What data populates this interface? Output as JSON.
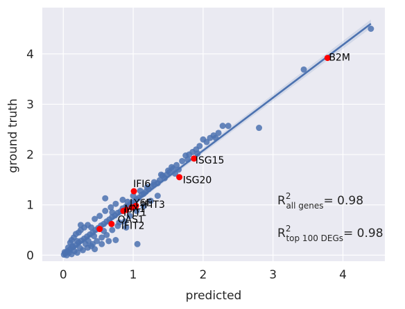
{
  "chart_data": {
    "type": "scatter",
    "title": "",
    "xlabel": "predicted",
    "ylabel": "ground truth",
    "xlim": [
      -0.3,
      4.6
    ],
    "ylim": [
      -0.12,
      4.92
    ],
    "xticks": [
      0,
      1,
      2,
      3,
      4
    ],
    "yticks": [
      0,
      1,
      2,
      3,
      4
    ],
    "grid": true,
    "colors": {
      "background": "#EAEAF2",
      "grid": "#FFFFFF",
      "points": "#4C72B0",
      "highlight": "#FF0000",
      "fit": "#4C72B0"
    },
    "fit_line": {
      "x": [
        0,
        4.4
      ],
      "y": [
        -0.02,
        4.6
      ]
    },
    "highlighted": [
      {
        "label": "B2M",
        "x": 3.78,
        "y": 3.92
      },
      {
        "label": "ISG15",
        "x": 1.87,
        "y": 1.92
      },
      {
        "label": "ISG20",
        "x": 1.66,
        "y": 1.55
      },
      {
        "label": "IFI6",
        "x": 1.01,
        "y": 1.27
      },
      {
        "label": "IFIT3",
        "x": 1.04,
        "y": 0.98
      },
      {
        "label": "LY6E",
        "x": 0.98,
        "y": 0.95
      },
      {
        "label": "MX1",
        "x": 0.9,
        "y": 0.9
      },
      {
        "label": "IFIT1",
        "x": 0.86,
        "y": 0.88
      },
      {
        "label": "OAS1",
        "x": 0.52,
        "y": 0.52
      },
      {
        "label": "IFIT2",
        "x": 0.69,
        "y": 0.62
      }
    ],
    "points": [
      [
        4.4,
        4.5
      ],
      [
        3.44,
        3.69
      ],
      [
        2.8,
        2.53
      ],
      [
        2.36,
        2.57
      ],
      [
        2.28,
        2.57
      ],
      [
        2.22,
        2.43
      ],
      [
        2.15,
        2.38
      ],
      [
        2.1,
        2.33
      ],
      [
        2.05,
        2.25
      ],
      [
        2.0,
        2.3
      ],
      [
        1.95,
        2.17
      ],
      [
        1.9,
        2.1
      ],
      [
        1.85,
        2.05
      ],
      [
        1.8,
        2.0
      ],
      [
        1.75,
        1.98
      ],
      [
        1.7,
        1.87
      ],
      [
        1.62,
        1.79
      ],
      [
        1.57,
        1.72
      ],
      [
        1.52,
        1.65
      ],
      [
        1.48,
        1.6
      ],
      [
        1.45,
        1.53
      ],
      [
        1.42,
        1.58
      ],
      [
        1.38,
        1.49
      ],
      [
        1.35,
        1.43
      ],
      [
        1.3,
        1.4
      ],
      [
        1.26,
        1.37
      ],
      [
        1.22,
        1.31
      ],
      [
        1.18,
        1.26
      ],
      [
        1.15,
        1.22
      ],
      [
        1.12,
        1.2
      ],
      [
        1.08,
        1.14
      ],
      [
        1.05,
        1.11
      ],
      [
        1.02,
        1.07
      ],
      [
        0.98,
        1.04
      ],
      [
        0.95,
        1.0
      ],
      [
        0.9,
        0.97
      ],
      [
        0.85,
        0.93
      ],
      [
        0.82,
        0.87
      ],
      [
        0.78,
        0.84
      ],
      [
        0.74,
        0.79
      ],
      [
        0.7,
        0.76
      ],
      [
        0.66,
        0.71
      ],
      [
        0.62,
        0.67
      ],
      [
        0.58,
        0.62
      ],
      [
        0.54,
        0.59
      ],
      [
        0.5,
        0.54
      ],
      [
        0.46,
        0.5
      ],
      [
        0.42,
        0.45
      ],
      [
        0.38,
        0.41
      ],
      [
        0.34,
        0.37
      ],
      [
        0.3,
        0.33
      ],
      [
        0.26,
        0.29
      ],
      [
        0.22,
        0.25
      ],
      [
        0.18,
        0.2
      ],
      [
        0.14,
        0.16
      ],
      [
        0.1,
        0.12
      ],
      [
        0.06,
        0.08
      ],
      [
        0.03,
        0.04
      ],
      [
        0.01,
        0.01
      ],
      [
        0.05,
        0.0
      ],
      [
        0.12,
        0.02
      ],
      [
        0.2,
        0.05
      ],
      [
        0.28,
        0.1
      ],
      [
        0.35,
        0.15
      ],
      [
        0.42,
        0.22
      ],
      [
        0.48,
        0.28
      ],
      [
        0.55,
        0.35
      ],
      [
        0.62,
        0.4
      ],
      [
        0.7,
        0.5
      ],
      [
        0.78,
        0.58
      ],
      [
        0.88,
        0.67
      ],
      [
        0.95,
        0.78
      ],
      [
        1.05,
        0.88
      ],
      [
        1.15,
        0.97
      ],
      [
        1.25,
        1.08
      ],
      [
        1.35,
        1.18
      ],
      [
        0.1,
        0.25
      ],
      [
        0.15,
        0.35
      ],
      [
        0.22,
        0.45
      ],
      [
        0.25,
        0.5
      ],
      [
        0.18,
        0.42
      ],
      [
        0.3,
        0.55
      ],
      [
        0.35,
        0.6
      ],
      [
        0.45,
        0.72
      ],
      [
        0.52,
        0.78
      ],
      [
        0.6,
        0.88
      ],
      [
        0.68,
        0.95
      ],
      [
        0.75,
        1.02
      ],
      [
        0.85,
        1.1
      ],
      [
        0.6,
        1.13
      ],
      [
        0.25,
        0.6
      ],
      [
        0.12,
        0.3
      ],
      [
        0.2,
        0.28
      ],
      [
        0.32,
        0.22
      ],
      [
        0.4,
        0.18
      ],
      [
        0.45,
        0.12
      ],
      [
        0.55,
        0.22
      ],
      [
        0.65,
        0.28
      ],
      [
        0.75,
        0.3
      ],
      [
        1.06,
        0.22
      ],
      [
        0.9,
        0.55
      ],
      [
        0.8,
        0.65
      ],
      [
        1.4,
        1.6
      ],
      [
        1.5,
        1.68
      ],
      [
        1.6,
        1.62
      ],
      [
        1.55,
        1.75
      ],
      [
        1.3,
        1.45
      ],
      [
        1.2,
        1.35
      ],
      [
        1.1,
        1.28
      ],
      [
        1.0,
        1.18
      ],
      [
        0.92,
        1.06
      ],
      [
        0.7,
        0.85
      ],
      [
        0.4,
        0.55
      ],
      [
        0.08,
        0.05
      ],
      [
        0.02,
        0.06
      ],
      [
        0.16,
        0.08
      ],
      [
        0.24,
        0.14
      ],
      [
        0.36,
        0.28
      ],
      [
        0.44,
        0.38
      ],
      [
        0.58,
        0.48
      ],
      [
        1.65,
        1.7
      ],
      [
        1.78,
        1.9
      ],
      [
        1.92,
        2.02
      ],
      [
        2.18,
        2.33
      ],
      [
        0.13,
        0.18
      ],
      [
        0.07,
        0.15
      ]
    ],
    "annotations": [
      {
        "base": "R",
        "sup": "2",
        "sub": "all genes",
        "value": "= 0.98"
      },
      {
        "base": "R",
        "sup": "2",
        "sub": "top 100 DEGs",
        "value": "= 0.98"
      }
    ]
  }
}
